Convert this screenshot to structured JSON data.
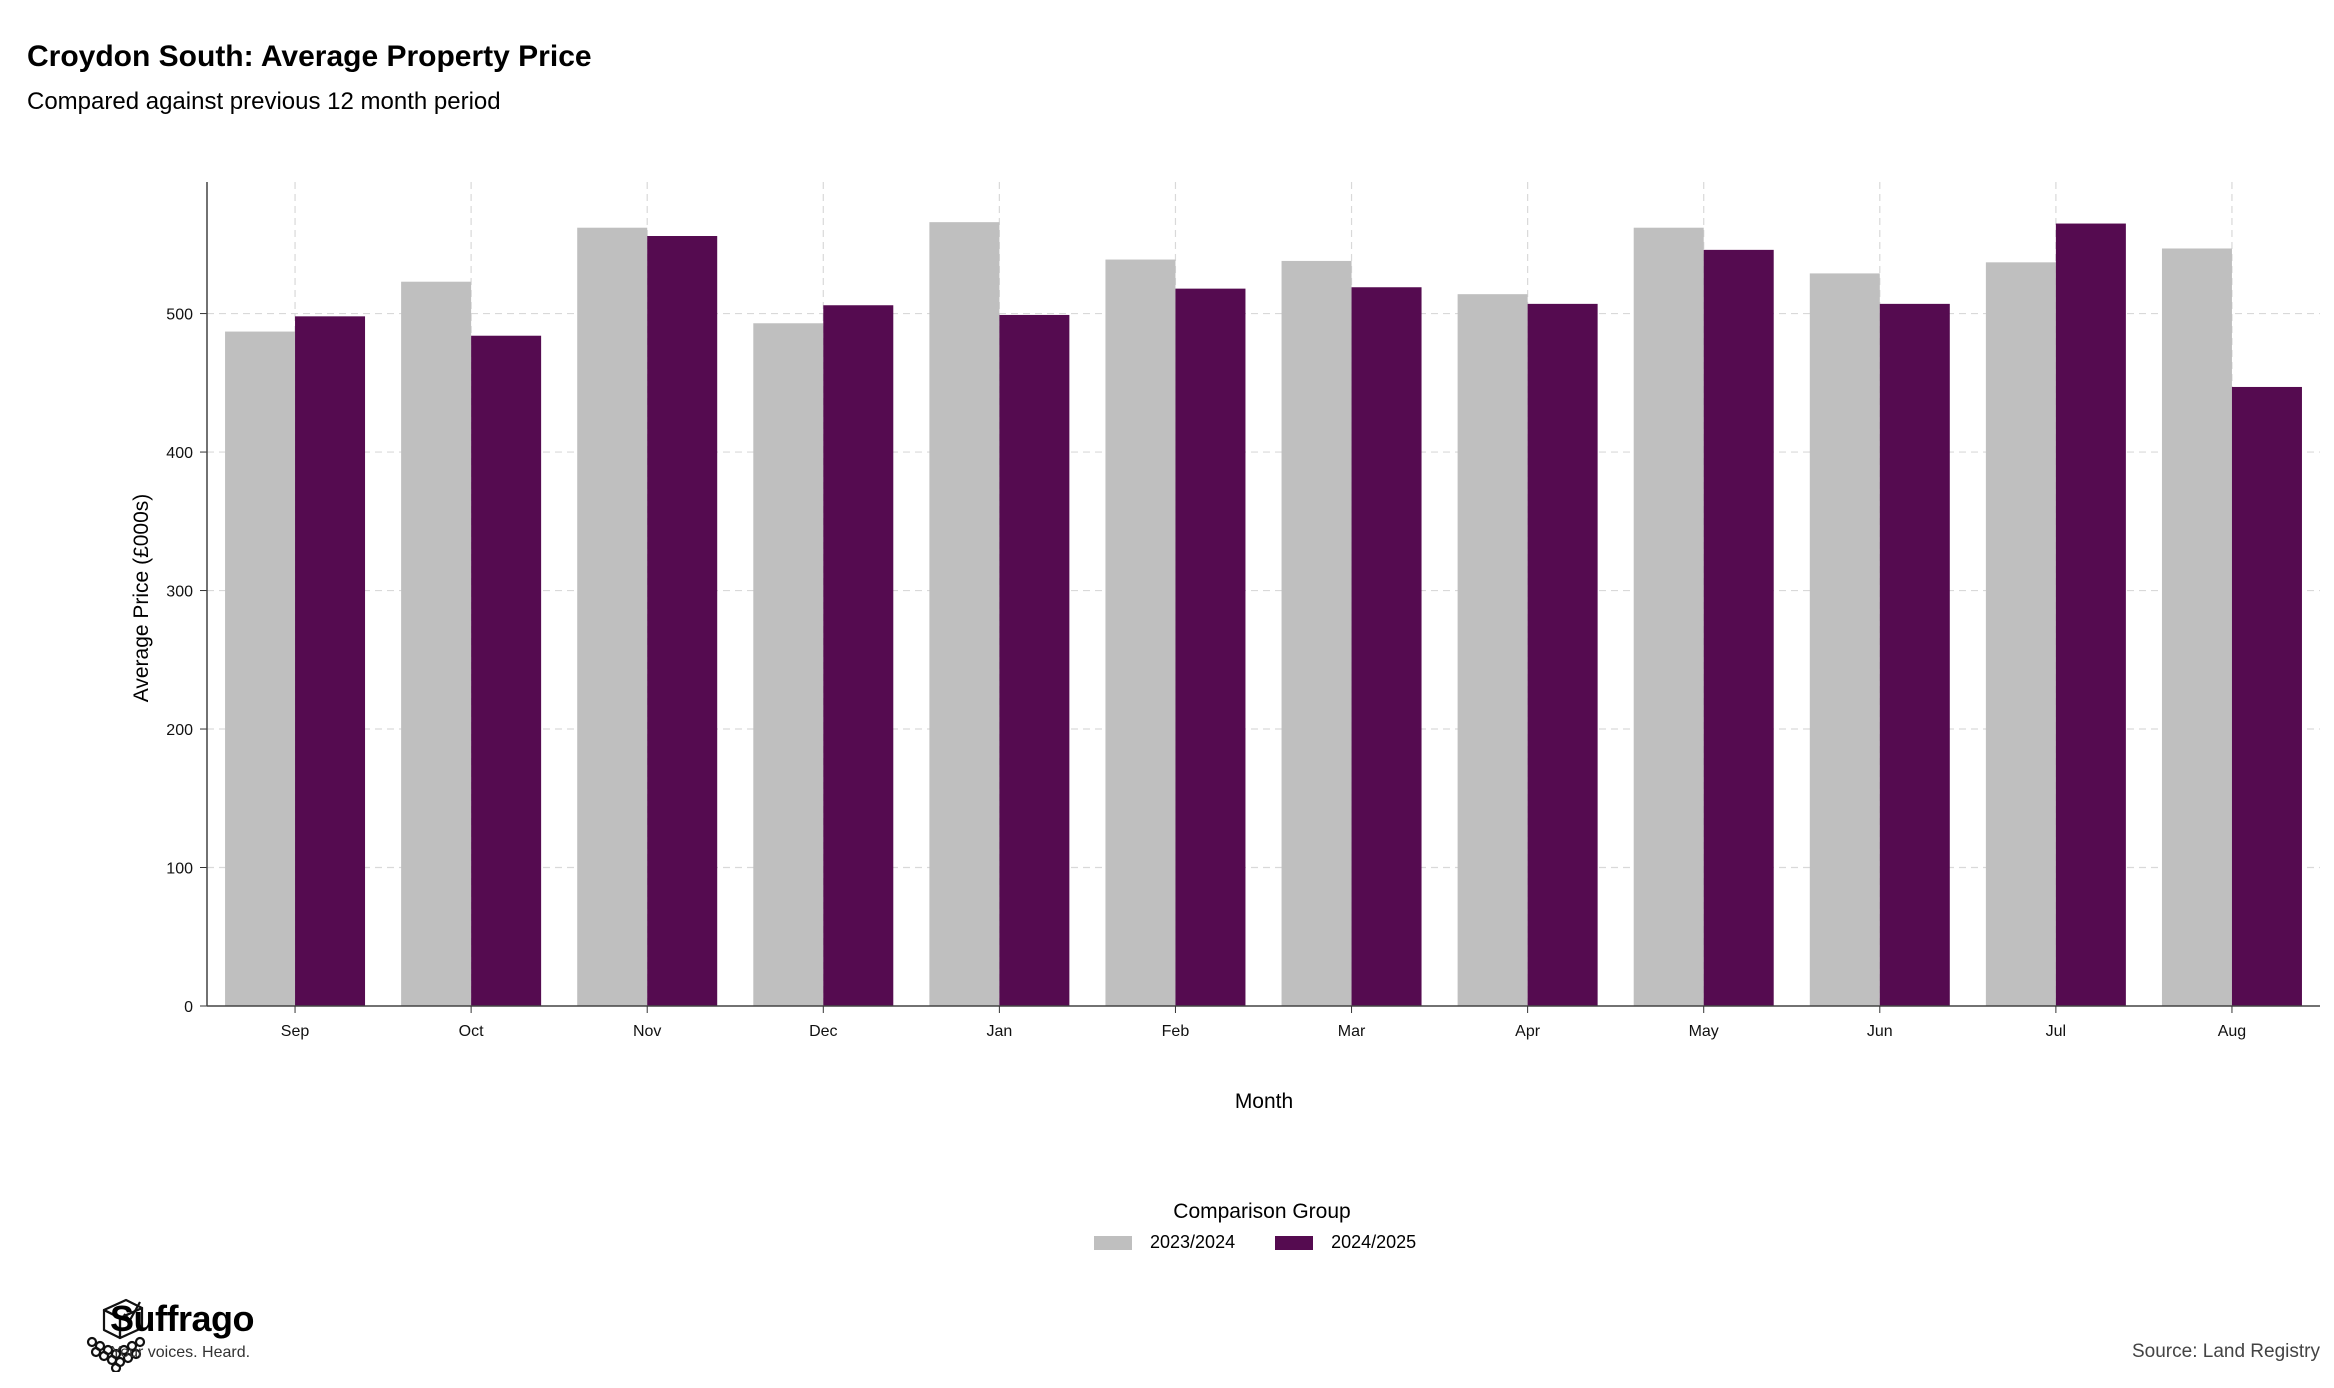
{
  "chart_data": {
    "type": "bar",
    "title": "Croydon South: Average Property Price",
    "subtitle": "Compared against previous 12 month period",
    "xlabel": "Month",
    "ylabel": "Average Price (£000s)",
    "categories": [
      "Sep",
      "Oct",
      "Nov",
      "Dec",
      "Jan",
      "Feb",
      "Mar",
      "Apr",
      "May",
      "Jun",
      "Jul",
      "Aug"
    ],
    "ylim": [
      0,
      595
    ],
    "yticks": [
      0,
      100,
      200,
      300,
      400,
      500
    ],
    "grid": true,
    "series": [
      {
        "name": "2023/2024",
        "color": "#bfbfbf",
        "values": [
          487,
          523,
          562,
          493,
          566,
          539,
          538,
          514,
          562,
          529,
          537,
          547
        ]
      },
      {
        "name": "2024/2025",
        "color": "#550b50",
        "values": [
          498,
          484,
          556,
          506,
          499,
          518,
          519,
          507,
          546,
          507,
          565,
          447
        ]
      }
    ],
    "legend": {
      "title": "Comparison Group",
      "position": "bottom"
    }
  },
  "footer": {
    "brand": "Suffrago",
    "tagline": "Your voices. Heard.",
    "source": "Source: Land Registry"
  }
}
